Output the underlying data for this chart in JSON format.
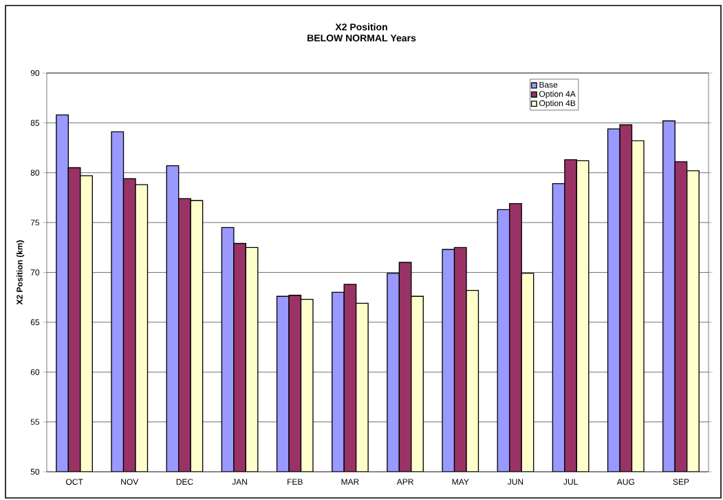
{
  "chart_data": {
    "type": "bar",
    "title": "X2 Position",
    "subtitle": "BELOW NORMAL Years",
    "ylabel": "X2 Position (km)",
    "categories": [
      "OCT",
      "NOV",
      "DEC",
      "JAN",
      "FEB",
      "MAR",
      "APR",
      "MAY",
      "JUN",
      "JUL",
      "AUG",
      "SEP"
    ],
    "series": [
      {
        "name": "Base",
        "color": "#9999ff",
        "values": [
          85.8,
          84.1,
          80.7,
          74.5,
          67.6,
          68.0,
          69.9,
          72.3,
          76.3,
          78.9,
          84.4,
          85.2
        ]
      },
      {
        "name": "Option 4A",
        "color": "#993366",
        "values": [
          80.5,
          79.4,
          77.4,
          72.9,
          67.7,
          68.8,
          71.0,
          72.5,
          76.9,
          81.3,
          84.8,
          81.1
        ]
      },
      {
        "name": "Option 4B",
        "color": "#ffffcc",
        "values": [
          79.7,
          78.8,
          77.2,
          72.5,
          67.3,
          66.9,
          67.6,
          68.2,
          69.9,
          81.2,
          83.2,
          80.2
        ]
      }
    ],
    "ylim": [
      50,
      90
    ],
    "yticks": [
      50,
      55,
      60,
      65,
      70,
      75,
      80,
      85,
      90
    ],
    "grid": "y",
    "legend": "top right"
  }
}
